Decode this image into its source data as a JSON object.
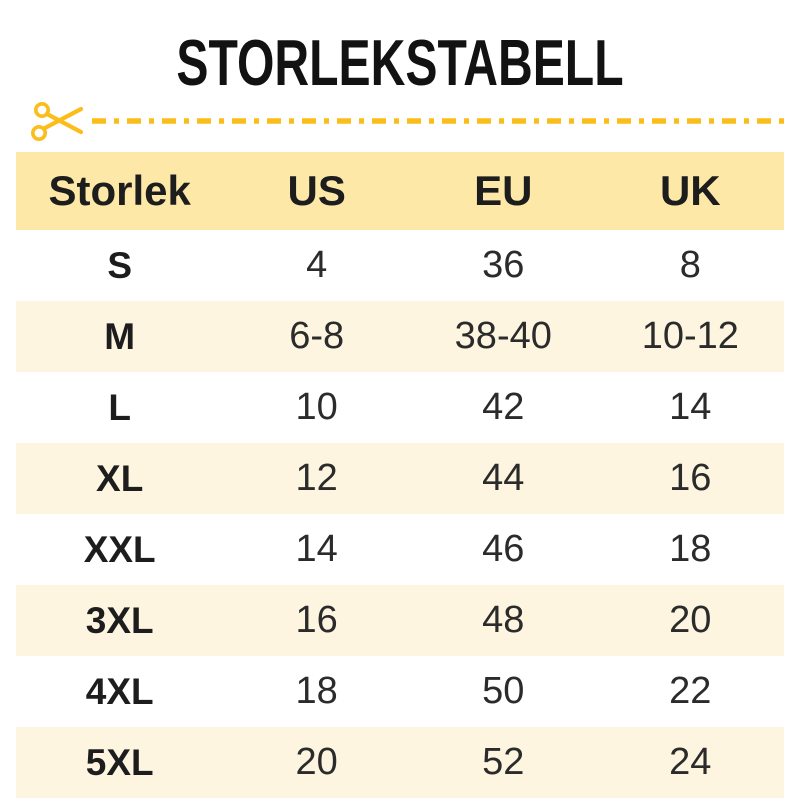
{
  "chart_data": {
    "type": "table",
    "title": "STORLEKSTABELL",
    "columns": [
      "Storlek",
      "US",
      "EU",
      "UK"
    ],
    "rows": [
      [
        "S",
        "4",
        "36",
        "8"
      ],
      [
        "M",
        "6-8",
        "38-40",
        "10-12"
      ],
      [
        "L",
        "10",
        "42",
        "14"
      ],
      [
        "XL",
        "12",
        "44",
        "16"
      ],
      [
        "XXL",
        "14",
        "46",
        "18"
      ],
      [
        "3XL",
        "16",
        "48",
        "20"
      ],
      [
        "4XL",
        "18",
        "50",
        "22"
      ],
      [
        "5XL",
        "20",
        "52",
        "24"
      ]
    ],
    "layout": {
      "header_row_shaded": true,
      "alternating_rows": true,
      "first_data_row_background": "white"
    }
  },
  "style": {
    "accent_gold": "#FBBD1A",
    "header_bg": "#FDE8A7",
    "alt_row_bg": "#FDF5E0",
    "title_color": "#121212",
    "text_color": "#1D1D1D",
    "value_text_color": "#2B2B2B",
    "page_bg": "#FFFFFF"
  },
  "divider": {
    "icon": "scissors-icon",
    "style": "dash-dot cut line"
  }
}
